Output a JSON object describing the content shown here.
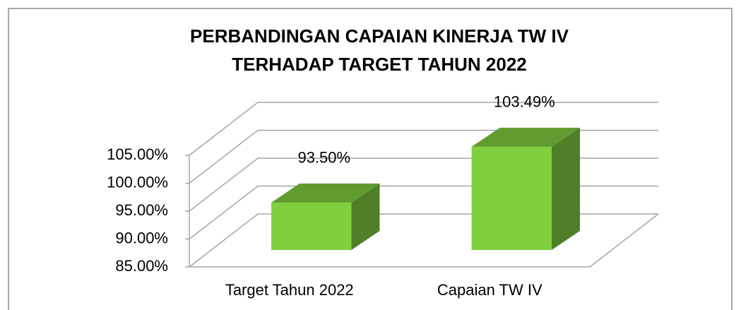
{
  "chart_data": {
    "type": "bar3d",
    "title": [
      "PERBANDINGAN CAPAIAN KINERJA TW IV",
      "TERHADAP TARGET TAHUN 2022"
    ],
    "categories": [
      "Target Tahun 2022",
      "Capaian TW IV"
    ],
    "values": [
      93.5,
      103.49
    ],
    "value_labels": [
      "93.50%",
      "103.49%"
    ],
    "color": "#7fcf3f",
    "ylim": [
      85,
      105
    ],
    "yticks": [
      {
        "value": 85,
        "label": "85.00%"
      },
      {
        "value": 90,
        "label": "90.00%"
      },
      {
        "value": 95,
        "label": "95.00%"
      },
      {
        "value": 100,
        "label": "100.00%"
      },
      {
        "value": 105,
        "label": "105.00%"
      }
    ],
    "grid": true
  }
}
